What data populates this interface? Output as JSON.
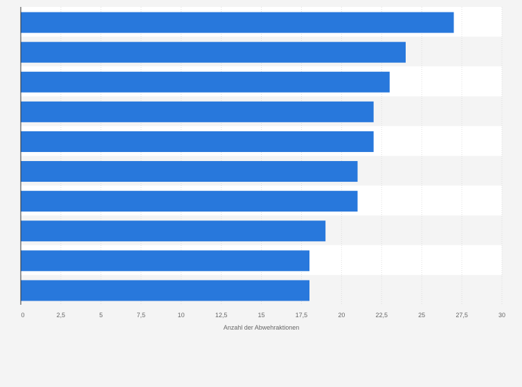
{
  "chart_data": {
    "type": "bar",
    "orientation": "horizontal",
    "title": "",
    "xlabel": "Anzahl der Abwehraktionen",
    "ylabel": "",
    "categories": [
      "",
      "",
      "",
      "",
      "",
      "",
      "",
      "",
      "",
      ""
    ],
    "values": [
      27,
      24,
      23,
      22,
      22,
      21,
      21,
      19,
      18,
      18
    ],
    "xlim": [
      0,
      30
    ],
    "xticks": [
      "0",
      "2,5",
      "5",
      "7,5",
      "10",
      "12,5",
      "15",
      "17,5",
      "20",
      "22,5",
      "25",
      "27,5",
      "30"
    ],
    "grid": true,
    "legend": "none",
    "bar_color": "#2878dc"
  }
}
